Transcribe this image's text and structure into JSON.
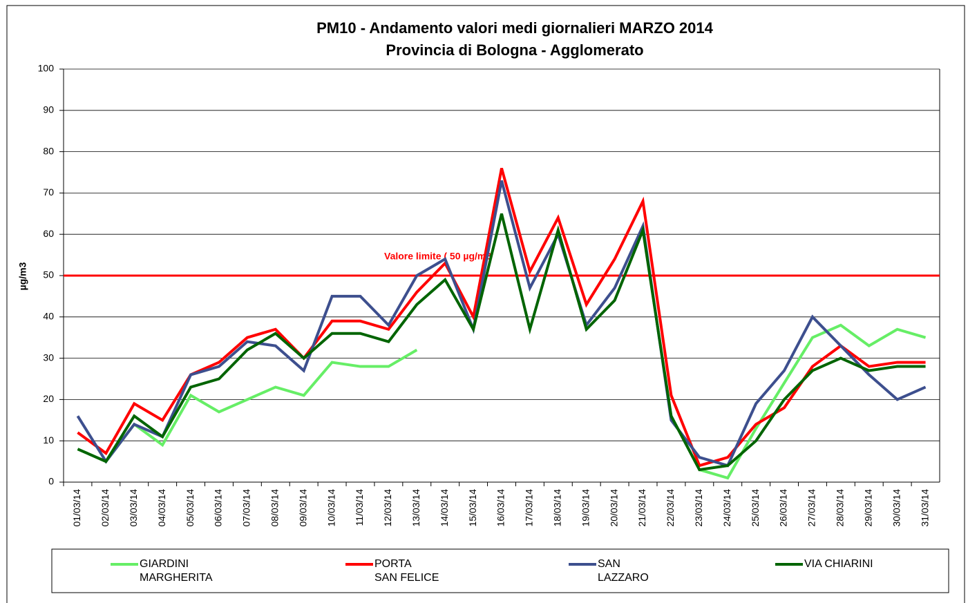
{
  "chart_data": {
    "type": "line",
    "title": "PM10 - Andamento valori medi giornalieri MARZO 2014",
    "subtitle": "Provincia di Bologna - Agglomerato",
    "y_label": "µg/m3",
    "categories": [
      "01/03/14",
      "02/03/14",
      "03/03/14",
      "04/03/14",
      "05/03/14",
      "06/03/14",
      "07/03/14",
      "08/03/14",
      "09/03/14",
      "10/03/14",
      "11/03/14",
      "12/03/14",
      "13/03/14",
      "14/03/14",
      "15/03/14",
      "16/03/14",
      "17/03/14",
      "18/03/14",
      "19/03/14",
      "20/03/14",
      "21/03/14",
      "22/03/14",
      "23/03/14",
      "24/03/14",
      "25/03/14",
      "26/03/14",
      "27/03/14",
      "28/03/14",
      "29/03/14",
      "30/03/14",
      "31/03/14"
    ],
    "series": [
      {
        "name": "GIARDINI\nMARGHERITA",
        "color": "#66ee66",
        "values": [
          8,
          5,
          14,
          9,
          21,
          17,
          20,
          23,
          21,
          29,
          28,
          28,
          32,
          null,
          null,
          null,
          null,
          null,
          null,
          null,
          null,
          16,
          3,
          1,
          13,
          24,
          35,
          38,
          33,
          37,
          35
        ]
      },
      {
        "name": "PORTA\nSAN FELICE",
        "color": "#ff0000",
        "values": [
          12,
          7,
          19,
          15,
          26,
          29,
          35,
          37,
          30,
          39,
          39,
          37,
          46,
          53,
          40,
          76,
          51,
          64,
          43,
          54,
          68,
          21,
          4,
          6,
          14,
          18,
          28,
          33,
          28,
          29,
          29
        ]
      },
      {
        "name": "SAN\nLAZZARO",
        "color": "#3d4f8e",
        "values": [
          16,
          5,
          14,
          11,
          26,
          28,
          34,
          33,
          27,
          45,
          45,
          38,
          50,
          54,
          37,
          73,
          47,
          60,
          38,
          47,
          62,
          15,
          6,
          4,
          19,
          27,
          40,
          33,
          26,
          20,
          23
        ]
      },
      {
        "name": "VIA CHIARINI",
        "color": "#006400",
        "values": [
          8,
          5,
          16,
          11,
          23,
          25,
          32,
          36,
          30,
          36,
          36,
          34,
          43,
          49,
          37,
          65,
          37,
          61,
          37,
          44,
          61,
          16,
          3,
          4,
          10,
          20,
          27,
          30,
          27,
          28,
          28
        ]
      }
    ],
    "reference_line": {
      "value": 50,
      "label": "Valore limite  ( 50 µg/m3",
      "color": "#ff0000"
    },
    "ylim": [
      0,
      100
    ],
    "yticks": [
      0,
      10,
      20,
      30,
      40,
      50,
      60,
      70,
      80,
      90,
      100
    ],
    "grid": true
  }
}
